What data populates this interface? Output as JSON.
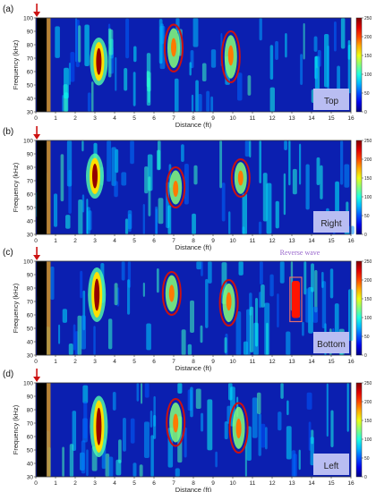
{
  "chart_data": [
    {
      "type": "heatmap",
      "panel_label": "(a)",
      "position_label": "Top",
      "xlabel": "Distance (ft)",
      "ylabel": "Frequency (kHz)",
      "xlim": [
        0,
        16
      ],
      "ylim": [
        30,
        100
      ],
      "x_ticks": [
        "0",
        "1",
        "2",
        "3",
        "4",
        "5",
        "6",
        "7",
        "8",
        "9",
        "10",
        "11",
        "12",
        "13",
        "14",
        "15",
        "16"
      ],
      "y_ticks": [
        "30",
        "40",
        "50",
        "60",
        "70",
        "80",
        "90",
        "100"
      ],
      "colorbar_range": [
        0,
        250
      ],
      "colorbar_ticks": [
        "0",
        "50",
        "100",
        "150",
        "200",
        "250"
      ],
      "high_intensity_bands": [
        {
          "x": 3.2,
          "y_range": [
            55,
            80
          ]
        }
      ],
      "circled_regions": [
        {
          "x": 7.0,
          "y_center": 78,
          "y_range": [
            60,
            95
          ]
        },
        {
          "x": 9.9,
          "y_center": 72,
          "y_range": [
            52,
            90
          ]
        }
      ],
      "annotations": []
    },
    {
      "type": "heatmap",
      "panel_label": "(b)",
      "position_label": "Right",
      "xlabel": "Distance (ft)",
      "ylabel": "Frequency (kHz)",
      "xlim": [
        0,
        16
      ],
      "ylim": [
        30,
        100
      ],
      "x_ticks": [
        "0",
        "1",
        "2",
        "3",
        "4",
        "5",
        "6",
        "7",
        "8",
        "9",
        "10",
        "11",
        "12",
        "13",
        "14",
        "15",
        "16"
      ],
      "y_ticks": [
        "30",
        "40",
        "50",
        "60",
        "70",
        "80",
        "90",
        "100"
      ],
      "colorbar_range": [
        0,
        250
      ],
      "colorbar_ticks": [
        "0",
        "50",
        "100",
        "150",
        "200",
        "250"
      ],
      "high_intensity_bands": [
        {
          "x": 3.0,
          "y_range": [
            62,
            85
          ]
        }
      ],
      "circled_regions": [
        {
          "x": 7.1,
          "y_center": 64,
          "y_range": [
            50,
            80
          ]
        },
        {
          "x": 10.4,
          "y_center": 72,
          "y_range": [
            58,
            86
          ]
        }
      ],
      "annotations": []
    },
    {
      "type": "heatmap",
      "panel_label": "(c)",
      "position_label": "Bottom",
      "xlabel": "Distance (ft)",
      "ylabel": "Frequency (kHz)",
      "xlim": [
        0,
        16
      ],
      "ylim": [
        30,
        100
      ],
      "x_ticks": [
        "0",
        "1",
        "2",
        "3",
        "4",
        "5",
        "6",
        "7",
        "8",
        "9",
        "10",
        "11",
        "12",
        "13",
        "14",
        "15",
        "16"
      ],
      "y_ticks": [
        "30",
        "40",
        "50",
        "60",
        "70",
        "80",
        "90",
        "100"
      ],
      "colorbar_range": [
        0,
        250
      ],
      "colorbar_ticks": [
        "0",
        "50",
        "100",
        "150",
        "200",
        "250"
      ],
      "high_intensity_bands": [
        {
          "x": 3.1,
          "y_range": [
            60,
            90
          ]
        }
      ],
      "circled_regions": [
        {
          "x": 6.9,
          "y_center": 76,
          "y_range": [
            60,
            92
          ]
        },
        {
          "x": 9.8,
          "y_center": 70,
          "y_range": [
            52,
            86
          ]
        }
      ],
      "reverse_wave_box": {
        "x_range": [
          12.9,
          13.5
        ],
        "y_range": [
          55,
          88
        ]
      },
      "annotations": [
        "Reverse wave"
      ]
    },
    {
      "type": "heatmap",
      "panel_label": "(d)",
      "position_label": "Left",
      "xlabel": "Distance (ft)",
      "ylabel": "Frequency (kHz)",
      "xlim": [
        0,
        16
      ],
      "ylim": [
        30,
        100
      ],
      "x_ticks": [
        "0",
        "1",
        "2",
        "3",
        "4",
        "5",
        "6",
        "7",
        "8",
        "9",
        "10",
        "11",
        "12",
        "13",
        "14",
        "15",
        "16"
      ],
      "y_ticks": [
        "30",
        "40",
        "50",
        "60",
        "70",
        "80",
        "90",
        "100"
      ],
      "colorbar_range": [
        0,
        250
      ],
      "colorbar_ticks": [
        "0",
        "50",
        "100",
        "150",
        "200",
        "250"
      ],
      "high_intensity_bands": [
        {
          "x": 3.2,
          "y_range": [
            50,
            85
          ]
        }
      ],
      "circled_regions": [
        {
          "x": 7.1,
          "y_center": 70,
          "y_range": [
            53,
            88
          ]
        },
        {
          "x": 10.3,
          "y_center": 66,
          "y_range": [
            48,
            85
          ]
        }
      ],
      "annotations": []
    }
  ],
  "colors": {
    "circle": "#cc1111",
    "reverse_box": "#e07070",
    "annotation_text": "#9966cc",
    "label_box": "#b9bdf2",
    "arrow": "#cc1111"
  }
}
